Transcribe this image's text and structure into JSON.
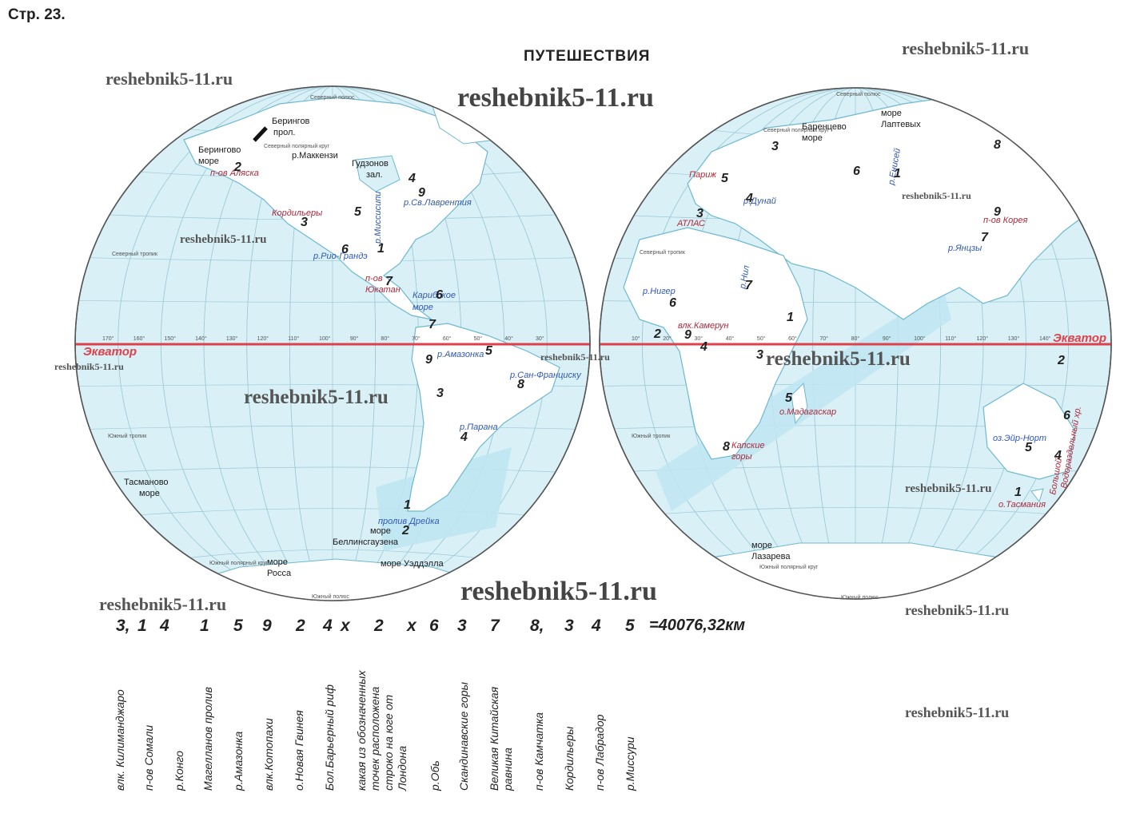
{
  "page_label": "Стр. 23.",
  "title": "ПУТЕШЕСТВИЯ",
  "watermark": "reshebnik5-11.ru",
  "colors": {
    "ocean": "#d8f0f6",
    "land": "#ffffff",
    "equator": "#e0404a",
    "grid": "#9cc9d8",
    "coast": "#6fb8cf"
  },
  "map_labels": {
    "north_pole": "Северный полюс",
    "south_pole": "Южный полюс",
    "arctic_circle": "Северный полярный круг",
    "antarctic_circle": "Южный полярный круг",
    "north_tropic": "Северный тропик",
    "south_tropic": "Южный тропик",
    "equator": "Экватор",
    "equator_tick": "Экватор"
  },
  "west_labels": {
    "bering_strait": "Берингов",
    "bering_strait2": "прол.",
    "bering_sea": "Берингово",
    "bering_sea2": "море",
    "alaska": "п-ов Аляска",
    "mackenzie": "р.Маккензи",
    "hudson": "Гудзонов",
    "hudson2": "зал.",
    "st_lawrence": "р.Св.Лаврентия",
    "cordillera": "Кордильеры",
    "mississippi": "р.Миссисипи",
    "rio_grande": "р.Рио-Грандэ",
    "yucatan": "п-ов",
    "yucatan2": "Юкатан",
    "caribbean": "Карибское",
    "caribbean2": "море",
    "amazon": "р.Амазонка",
    "sao_francisco": "р.Сан-Франциску",
    "parana": "р.Парана",
    "tasman": "Тасманово",
    "tasman2": "море",
    "drake": "пролив Дрейка",
    "bellingshausen": "море",
    "bellingshausen2": "Беллинсгаузена",
    "weddell": "море Уэддэлла",
    "ross": "море",
    "ross2": "Росса"
  },
  "east_labels": {
    "laptev": "море",
    "laptev2": "Лаптевых",
    "barents": "Баренцево",
    "barents2": "море",
    "yenisei": "р.Енисей",
    "paris": "Париж",
    "danube": "р.Дунай",
    "atlas": "АТЛАС",
    "korea": "п-ов Корея",
    "yangtze": "р.Янцзы",
    "nile": "р.Нил",
    "niger": "р.Нигер",
    "cameroon": "влк.Камерун",
    "madagascar": "о.Мадагаскар",
    "cape": "Капские",
    "cape2": "горы",
    "eyre": "оз.Эйр-Норт",
    "dividing": "Большой",
    "dividing2": "Водораздельный хр.",
    "tasmania": "о.Тасмания",
    "lazarev": "море",
    "lazarev2": "Лазарева"
  },
  "west_numbers": [
    "2",
    "4",
    "9",
    "5",
    "3",
    "1",
    "6",
    "7",
    "6",
    "7",
    "9",
    "5",
    "8",
    "3",
    "4",
    "1",
    "2"
  ],
  "east_numbers": [
    "3",
    "8",
    "6",
    "1",
    "5",
    "4",
    "3",
    "9",
    "7",
    "7",
    "6",
    "1",
    "2",
    "9",
    "4",
    "3",
    "5",
    "2",
    "6",
    "5",
    "4",
    "8",
    "1"
  ],
  "answers": [
    "3,",
    "1",
    "4",
    "1",
    "5",
    "9",
    "2",
    "4",
    "х",
    "2",
    "х",
    "6",
    "3",
    "7",
    "8,",
    "3",
    "4",
    "5",
    "=40076,32км"
  ],
  "legend_items": [
    "влк. Килиманджаро",
    "п-ов Сомали",
    "р.Конго",
    "Магелланов пролив",
    "р.Амазонка",
    "влк.Котопахи",
    "о.Новая Гвинея",
    "Бол.Барьерный риф",
    "какая из обозначенных\nточек расположена\nстроко на юге от\nЛондона",
    "р.Обь",
    "Скандинавские горы",
    "Великая Китайская\nравнина",
    "п-ов Камчатка",
    "Кордильеры",
    "п-ов Лабрадор",
    "р.Миссури"
  ],
  "longitudes_west": [
    "170",
    "160",
    "150",
    "140",
    "130",
    "120",
    "110",
    "100",
    "90",
    "80",
    "70",
    "60",
    "50",
    "40",
    "30"
  ],
  "longitudes_east": [
    "10",
    "20",
    "30",
    "40",
    "50",
    "60",
    "70",
    "80",
    "90",
    "100",
    "110",
    "120",
    "130",
    "140"
  ]
}
